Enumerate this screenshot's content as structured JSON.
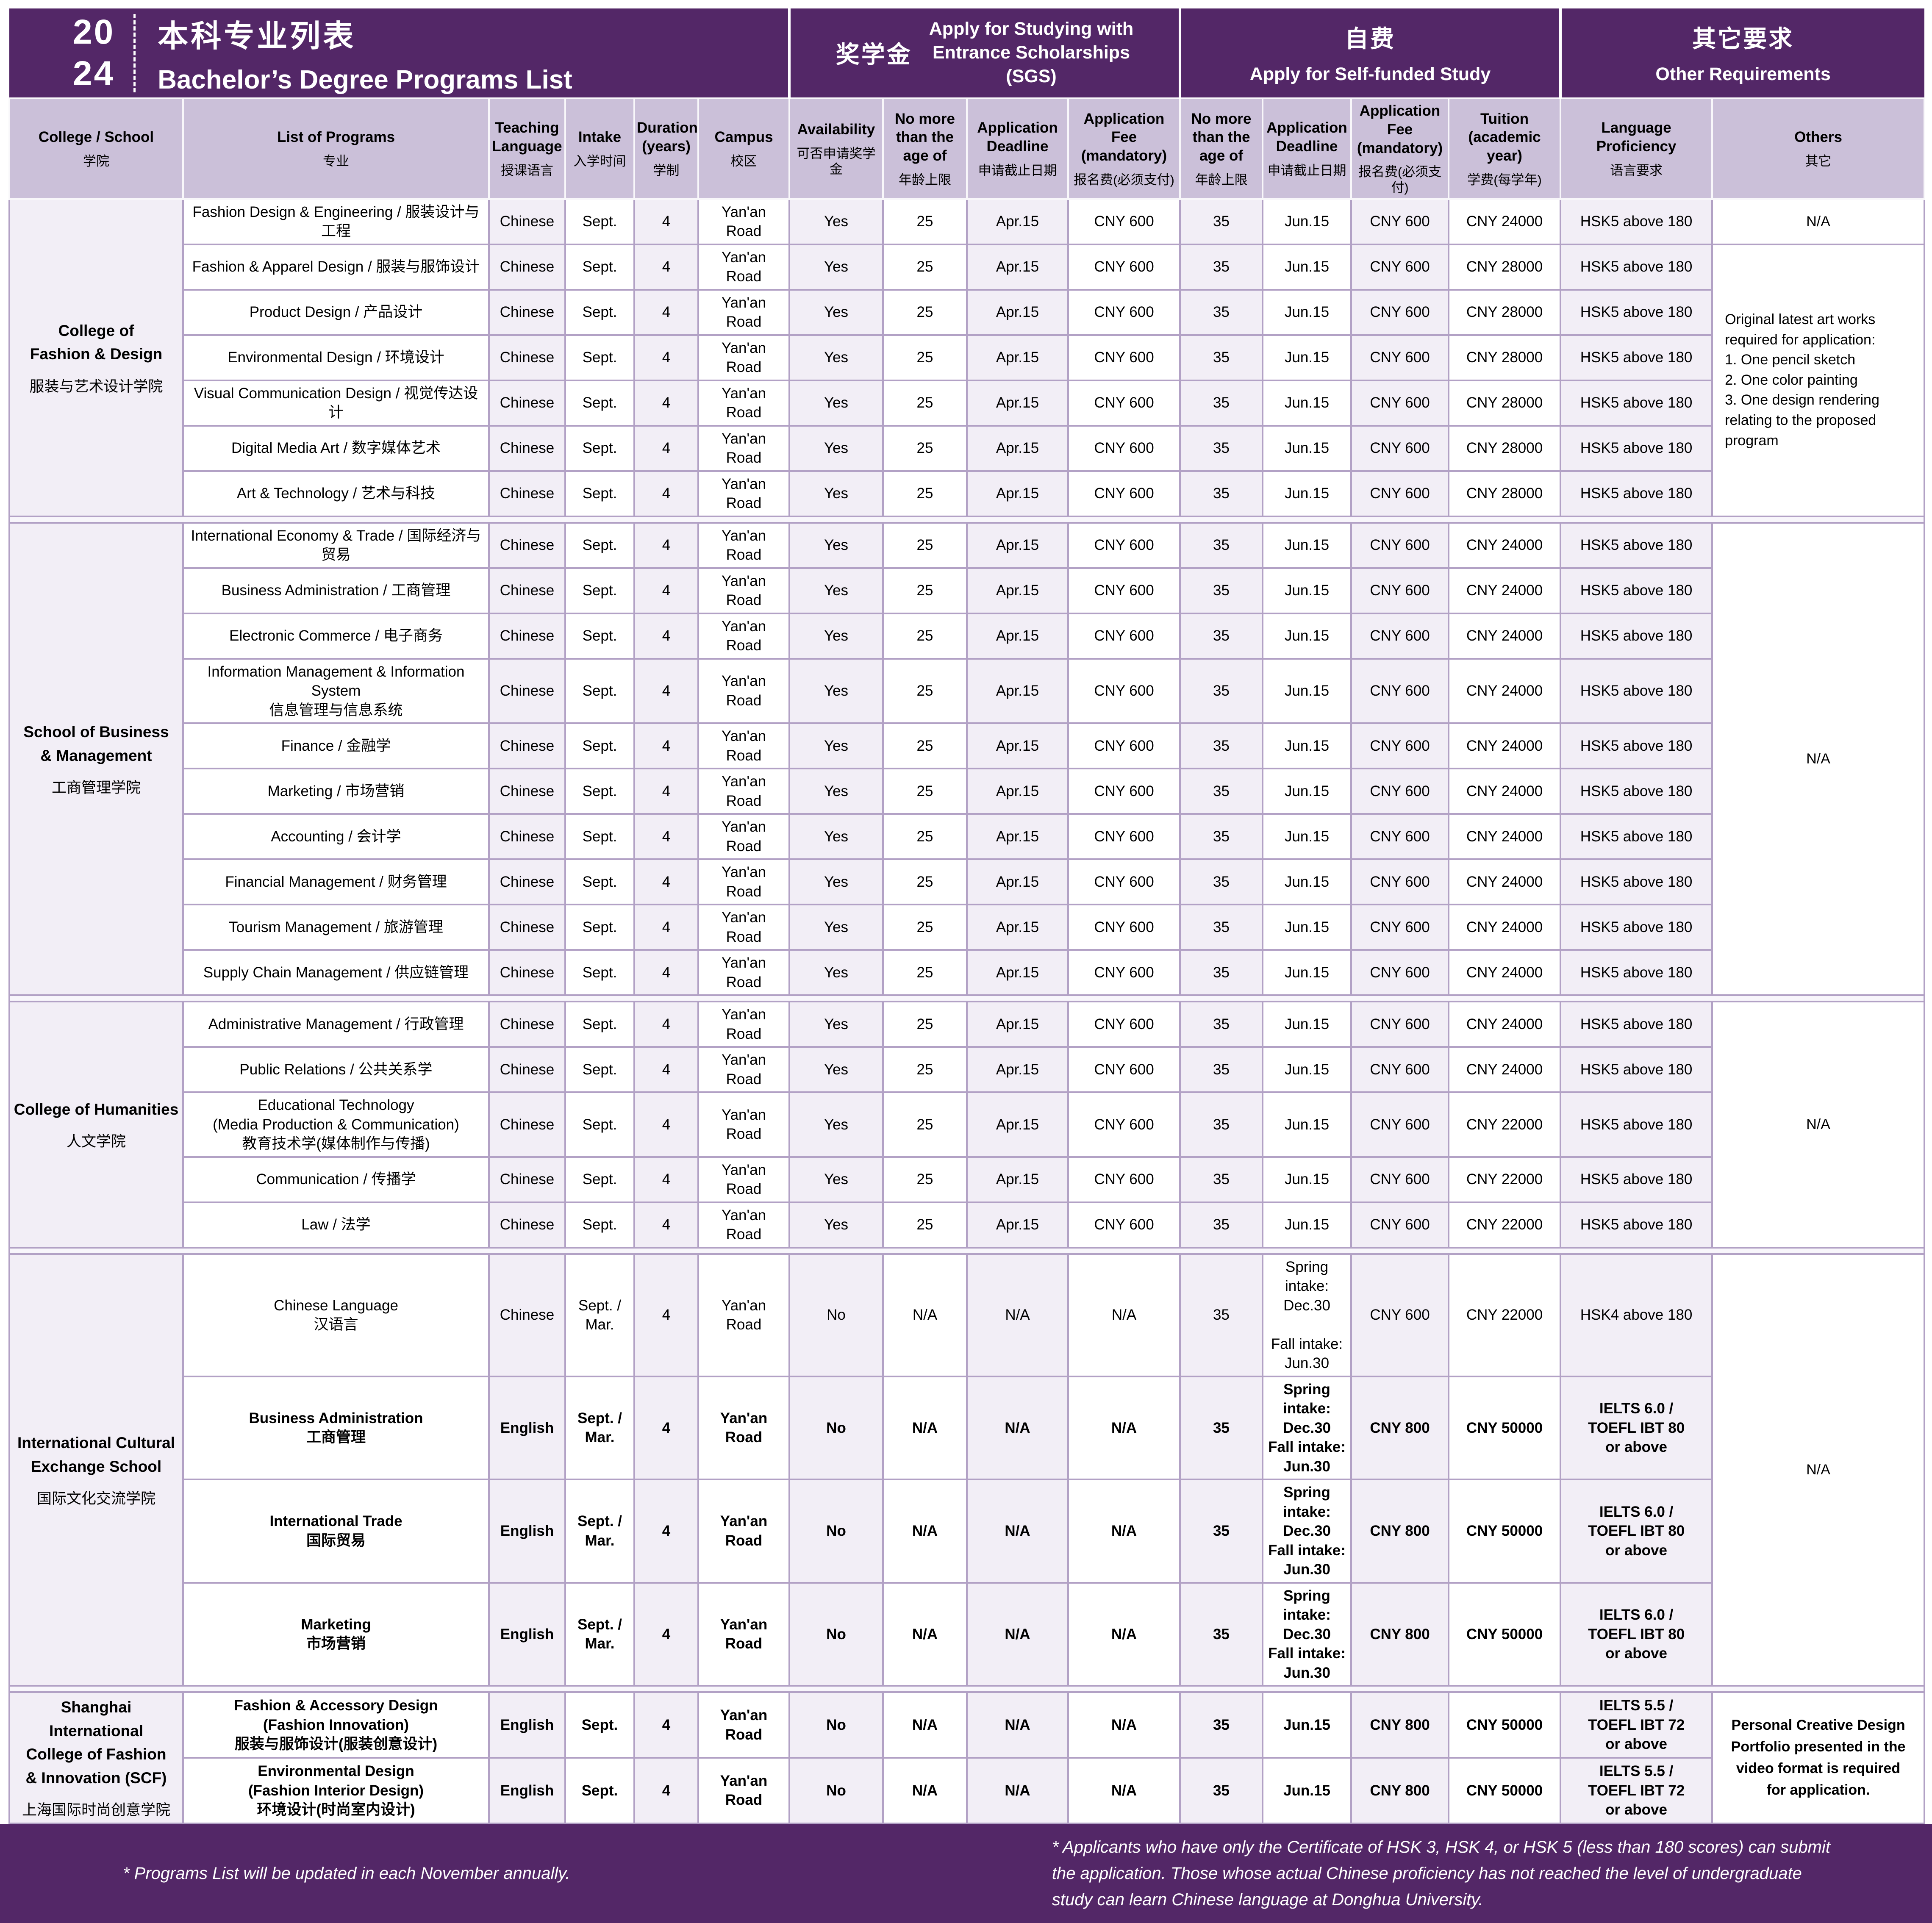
{
  "header": {
    "year_top": "20",
    "year_bottom": "24",
    "title_zh": "本科专业列表",
    "title_en": "Bachelor’s Degree Programs List",
    "groups": {
      "sgs": {
        "zh": "奖学金",
        "en": "Apply for Studying with\nEntrance Scholarships\n(SGS)"
      },
      "self": {
        "zh": "自费",
        "en": "Apply for Self-funded Study"
      },
      "other": {
        "zh": "其它要求",
        "en": "Other Requirements"
      }
    }
  },
  "columns": [
    {
      "en": "College / School",
      "zh": "学院"
    },
    {
      "en": "List of Programs",
      "zh": "专业"
    },
    {
      "en": "Teaching Language",
      "zh": "授课语言"
    },
    {
      "en": "Intake",
      "zh": "入学时间"
    },
    {
      "en": "Duration (years)",
      "zh": "学制"
    },
    {
      "en": "Campus",
      "zh": "校区"
    },
    {
      "en": "Availability",
      "zh": "可否申请奖学金"
    },
    {
      "en": "No more than the age of",
      "zh": "年龄上限"
    },
    {
      "en": "Application Deadline",
      "zh": "申请截止日期"
    },
    {
      "en": "Application Fee (mandatory)",
      "zh": "报名费(必须支付)"
    },
    {
      "en": "No more than the age of",
      "zh": "年龄上限"
    },
    {
      "en": "Application Deadline",
      "zh": "申请截止日期"
    },
    {
      "en": "Application Fee (mandatory)",
      "zh": "报名费(必须支付)"
    },
    {
      "en": "Tuition (academic year)",
      "zh": "学费(每学年)"
    },
    {
      "en": "Language Proficiency",
      "zh": "语言要求"
    },
    {
      "en": "Others",
      "zh": "其它"
    }
  ],
  "colleges": [
    {
      "name_en": "College of\nFashion & Design",
      "name_zh": "服装与艺术设计学院",
      "others": [
        {
          "text": "N/A",
          "rows": 1,
          "align": "center"
        },
        {
          "text": "Original latest art works required for application:\n1. One pencil sketch\n2. One color painting\n3. One design rendering relating to the proposed program",
          "rows": 6,
          "align": "left"
        }
      ],
      "rows": [
        {
          "program": "Fashion Design & Engineering / 服装设计与工程",
          "teaching": "Chinese",
          "intake": "Sept.",
          "duration": "4",
          "campus": "Yan'an Road",
          "availability": "Yes",
          "sgs_age": "25",
          "sgs_deadline": "Apr.15",
          "sgs_fee": "CNY 600",
          "self_age": "35",
          "self_deadline": "Jun.15",
          "self_fee": "CNY 600",
          "tuition": "CNY 24000",
          "language": "HSK5 above 180"
        },
        {
          "program": "Fashion & Apparel Design / 服装与服饰设计",
          "teaching": "Chinese",
          "intake": "Sept.",
          "duration": "4",
          "campus": "Yan'an Road",
          "availability": "Yes",
          "sgs_age": "25",
          "sgs_deadline": "Apr.15",
          "sgs_fee": "CNY 600",
          "self_age": "35",
          "self_deadline": "Jun.15",
          "self_fee": "CNY 600",
          "tuition": "CNY 28000",
          "language": "HSK5 above 180"
        },
        {
          "program": "Product Design / 产品设计",
          "teaching": "Chinese",
          "intake": "Sept.",
          "duration": "4",
          "campus": "Yan'an Road",
          "availability": "Yes",
          "sgs_age": "25",
          "sgs_deadline": "Apr.15",
          "sgs_fee": "CNY 600",
          "self_age": "35",
          "self_deadline": "Jun.15",
          "self_fee": "CNY 600",
          "tuition": "CNY 28000",
          "language": "HSK5 above 180"
        },
        {
          "program": "Environmental Design / 环境设计",
          "teaching": "Chinese",
          "intake": "Sept.",
          "duration": "4",
          "campus": "Yan'an Road",
          "availability": "Yes",
          "sgs_age": "25",
          "sgs_deadline": "Apr.15",
          "sgs_fee": "CNY 600",
          "self_age": "35",
          "self_deadline": "Jun.15",
          "self_fee": "CNY 600",
          "tuition": "CNY 28000",
          "language": "HSK5 above 180"
        },
        {
          "program": "Visual Communication Design / 视觉传达设计",
          "teaching": "Chinese",
          "intake": "Sept.",
          "duration": "4",
          "campus": "Yan'an Road",
          "availability": "Yes",
          "sgs_age": "25",
          "sgs_deadline": "Apr.15",
          "sgs_fee": "CNY 600",
          "self_age": "35",
          "self_deadline": "Jun.15",
          "self_fee": "CNY 600",
          "tuition": "CNY 28000",
          "language": "HSK5 above 180"
        },
        {
          "program": "Digital Media Art / 数字媒体艺术",
          "teaching": "Chinese",
          "intake": "Sept.",
          "duration": "4",
          "campus": "Yan'an Road",
          "availability": "Yes",
          "sgs_age": "25",
          "sgs_deadline": "Apr.15",
          "sgs_fee": "CNY 600",
          "self_age": "35",
          "self_deadline": "Jun.15",
          "self_fee": "CNY 600",
          "tuition": "CNY 28000",
          "language": "HSK5 above 180"
        },
        {
          "program": "Art & Technology / 艺术与科技",
          "teaching": "Chinese",
          "intake": "Sept.",
          "duration": "4",
          "campus": "Yan'an Road",
          "availability": "Yes",
          "sgs_age": "25",
          "sgs_deadline": "Apr.15",
          "sgs_fee": "CNY 600",
          "self_age": "35",
          "self_deadline": "Jun.15",
          "self_fee": "CNY 600",
          "tuition": "CNY 28000",
          "language": "HSK5 above 180"
        }
      ]
    },
    {
      "name_en": "School of Business\n& Management",
      "name_zh": "工商管理学院",
      "others": [
        {
          "text": "N/A",
          "rows": 10,
          "align": "center"
        }
      ],
      "rows": [
        {
          "program": "International Economy & Trade / 国际经济与贸易",
          "teaching": "Chinese",
          "intake": "Sept.",
          "duration": "4",
          "campus": "Yan'an Road",
          "availability": "Yes",
          "sgs_age": "25",
          "sgs_deadline": "Apr.15",
          "sgs_fee": "CNY 600",
          "self_age": "35",
          "self_deadline": "Jun.15",
          "self_fee": "CNY 600",
          "tuition": "CNY 24000",
          "language": "HSK5 above 180"
        },
        {
          "program": "Business Administration / 工商管理",
          "teaching": "Chinese",
          "intake": "Sept.",
          "duration": "4",
          "campus": "Yan'an Road",
          "availability": "Yes",
          "sgs_age": "25",
          "sgs_deadline": "Apr.15",
          "sgs_fee": "CNY 600",
          "self_age": "35",
          "self_deadline": "Jun.15",
          "self_fee": "CNY 600",
          "tuition": "CNY 24000",
          "language": "HSK5 above 180"
        },
        {
          "program": "Electronic Commerce / 电子商务",
          "teaching": "Chinese",
          "intake": "Sept.",
          "duration": "4",
          "campus": "Yan'an Road",
          "availability": "Yes",
          "sgs_age": "25",
          "sgs_deadline": "Apr.15",
          "sgs_fee": "CNY 600",
          "self_age": "35",
          "self_deadline": "Jun.15",
          "self_fee": "CNY 600",
          "tuition": "CNY 24000",
          "language": "HSK5 above 180"
        },
        {
          "program": "Information Management & Information System\n信息管理与信息系统",
          "teaching": "Chinese",
          "intake": "Sept.",
          "duration": "4",
          "campus": "Yan'an Road",
          "availability": "Yes",
          "sgs_age": "25",
          "sgs_deadline": "Apr.15",
          "sgs_fee": "CNY 600",
          "self_age": "35",
          "self_deadline": "Jun.15",
          "self_fee": "CNY 600",
          "tuition": "CNY 24000",
          "language": "HSK5 above 180"
        },
        {
          "program": "Finance / 金融学",
          "teaching": "Chinese",
          "intake": "Sept.",
          "duration": "4",
          "campus": "Yan'an Road",
          "availability": "Yes",
          "sgs_age": "25",
          "sgs_deadline": "Apr.15",
          "sgs_fee": "CNY 600",
          "self_age": "35",
          "self_deadline": "Jun.15",
          "self_fee": "CNY 600",
          "tuition": "CNY 24000",
          "language": "HSK5 above 180"
        },
        {
          "program": "Marketing / 市场营销",
          "teaching": "Chinese",
          "intake": "Sept.",
          "duration": "4",
          "campus": "Yan'an Road",
          "availability": "Yes",
          "sgs_age": "25",
          "sgs_deadline": "Apr.15",
          "sgs_fee": "CNY 600",
          "self_age": "35",
          "self_deadline": "Jun.15",
          "self_fee": "CNY 600",
          "tuition": "CNY 24000",
          "language": "HSK5 above 180"
        },
        {
          "program": "Accounting / 会计学",
          "teaching": "Chinese",
          "intake": "Sept.",
          "duration": "4",
          "campus": "Yan'an Road",
          "availability": "Yes",
          "sgs_age": "25",
          "sgs_deadline": "Apr.15",
          "sgs_fee": "CNY 600",
          "self_age": "35",
          "self_deadline": "Jun.15",
          "self_fee": "CNY 600",
          "tuition": "CNY 24000",
          "language": "HSK5 above 180"
        },
        {
          "program": "Financial Management / 财务管理",
          "teaching": "Chinese",
          "intake": "Sept.",
          "duration": "4",
          "campus": "Yan'an Road",
          "availability": "Yes",
          "sgs_age": "25",
          "sgs_deadline": "Apr.15",
          "sgs_fee": "CNY 600",
          "self_age": "35",
          "self_deadline": "Jun.15",
          "self_fee": "CNY 600",
          "tuition": "CNY 24000",
          "language": "HSK5 above 180"
        },
        {
          "program": "Tourism Management / 旅游管理",
          "teaching": "Chinese",
          "intake": "Sept.",
          "duration": "4",
          "campus": "Yan'an Road",
          "availability": "Yes",
          "sgs_age": "25",
          "sgs_deadline": "Apr.15",
          "sgs_fee": "CNY 600",
          "self_age": "35",
          "self_deadline": "Jun.15",
          "self_fee": "CNY 600",
          "tuition": "CNY 24000",
          "language": "HSK5 above 180"
        },
        {
          "program": "Supply Chain Management / 供应链管理",
          "teaching": "Chinese",
          "intake": "Sept.",
          "duration": "4",
          "campus": "Yan'an Road",
          "availability": "Yes",
          "sgs_age": "25",
          "sgs_deadline": "Apr.15",
          "sgs_fee": "CNY 600",
          "self_age": "35",
          "self_deadline": "Jun.15",
          "self_fee": "CNY 600",
          "tuition": "CNY 24000",
          "language": "HSK5 above 180"
        }
      ]
    },
    {
      "name_en": "College of Humanities",
      "name_zh": "人文学院",
      "others": [
        {
          "text": "N/A",
          "rows": 5,
          "align": "center"
        }
      ],
      "rows": [
        {
          "program": "Administrative Management / 行政管理",
          "teaching": "Chinese",
          "intake": "Sept.",
          "duration": "4",
          "campus": "Yan'an Road",
          "availability": "Yes",
          "sgs_age": "25",
          "sgs_deadline": "Apr.15",
          "sgs_fee": "CNY 600",
          "self_age": "35",
          "self_deadline": "Jun.15",
          "self_fee": "CNY 600",
          "tuition": "CNY 24000",
          "language": "HSK5 above 180"
        },
        {
          "program": "Public Relations / 公共关系学",
          "teaching": "Chinese",
          "intake": "Sept.",
          "duration": "4",
          "campus": "Yan'an Road",
          "availability": "Yes",
          "sgs_age": "25",
          "sgs_deadline": "Apr.15",
          "sgs_fee": "CNY 600",
          "self_age": "35",
          "self_deadline": "Jun.15",
          "self_fee": "CNY 600",
          "tuition": "CNY 24000",
          "language": "HSK5 above 180"
        },
        {
          "program": "Educational Technology\n(Media Production & Communication)\n教育技术学(媒体制作与传播)",
          "teaching": "Chinese",
          "intake": "Sept.",
          "duration": "4",
          "campus": "Yan'an Road",
          "availability": "Yes",
          "sgs_age": "25",
          "sgs_deadline": "Apr.15",
          "sgs_fee": "CNY 600",
          "self_age": "35",
          "self_deadline": "Jun.15",
          "self_fee": "CNY 600",
          "tuition": "CNY 22000",
          "language": "HSK5 above 180"
        },
        {
          "program": "Communication / 传播学",
          "teaching": "Chinese",
          "intake": "Sept.",
          "duration": "4",
          "campus": "Yan'an Road",
          "availability": "Yes",
          "sgs_age": "25",
          "sgs_deadline": "Apr.15",
          "sgs_fee": "CNY 600",
          "self_age": "35",
          "self_deadline": "Jun.15",
          "self_fee": "CNY 600",
          "tuition": "CNY 22000",
          "language": "HSK5 above 180"
        },
        {
          "program": "Law / 法学",
          "teaching": "Chinese",
          "intake": "Sept.",
          "duration": "4",
          "campus": "Yan'an Road",
          "availability": "Yes",
          "sgs_age": "25",
          "sgs_deadline": "Apr.15",
          "sgs_fee": "CNY 600",
          "self_age": "35",
          "self_deadline": "Jun.15",
          "self_fee": "CNY 600",
          "tuition": "CNY 22000",
          "language": "HSK5 above 180"
        }
      ]
    },
    {
      "name_en": "International Cultural\nExchange School",
      "name_zh": "国际文化交流学院",
      "others": [
        {
          "text": "N/A",
          "rows": 4,
          "align": "center"
        }
      ],
      "rows": [
        {
          "program": "Chinese Language\n汉语言",
          "teaching": "Chinese",
          "intake": "Sept. /\nMar.",
          "duration": "4",
          "campus": "Yan'an Road",
          "availability": "No",
          "sgs_age": "N/A",
          "sgs_deadline": "N/A",
          "sgs_fee": "N/A",
          "self_age": "35",
          "self_deadline": "Spring intake:\nDec.30\n\nFall intake:\nJun.30",
          "self_fee": "CNY 600",
          "tuition": "CNY 22000",
          "language": "HSK4 above 180"
        },
        {
          "program": "Business Administration\n工商管理",
          "bold": true,
          "teaching": "English",
          "intake": "Sept. /\nMar.",
          "duration": "4",
          "campus": "Yan'an Road",
          "availability": "No",
          "sgs_age": "N/A",
          "sgs_deadline": "N/A",
          "sgs_fee": "N/A",
          "self_age": "35",
          "self_deadline": "Spring intake:\nDec.30\nFall intake:\nJun.30",
          "self_fee": "CNY 800",
          "tuition": "CNY 50000",
          "language": "IELTS 6.0 /\nTOEFL IBT 80\nor above"
        },
        {
          "program": "International Trade\n国际贸易",
          "bold": true,
          "teaching": "English",
          "intake": "Sept. /\nMar.",
          "duration": "4",
          "campus": "Yan'an Road",
          "availability": "No",
          "sgs_age": "N/A",
          "sgs_deadline": "N/A",
          "sgs_fee": "N/A",
          "self_age": "35",
          "self_deadline": "Spring intake:\nDec.30\nFall intake:\nJun.30",
          "self_fee": "CNY 800",
          "tuition": "CNY 50000",
          "language": "IELTS 6.0 /\nTOEFL IBT 80\nor above"
        },
        {
          "program": "Marketing\n市场营销",
          "bold": true,
          "teaching": "English",
          "intake": "Sept. /\nMar.",
          "duration": "4",
          "campus": "Yan'an Road",
          "availability": "No",
          "sgs_age": "N/A",
          "sgs_deadline": "N/A",
          "sgs_fee": "N/A",
          "self_age": "35",
          "self_deadline": "Spring intake:\nDec.30\nFall intake:\nJun.30",
          "self_fee": "CNY 800",
          "tuition": "CNY 50000",
          "language": "IELTS 6.0 /\nTOEFL IBT 80\nor above"
        }
      ]
    },
    {
      "name_en": "Shanghai International\nCollege of Fashion\n& Innovation (SCF)",
      "name_zh": "上海国际时尚创意学院",
      "others": [
        {
          "text": "Personal Creative Design\nPortfolio presented in the\nvideo format is required\nfor application.",
          "rows": 2,
          "align": "center"
        }
      ],
      "rows": [
        {
          "program": "Fashion & Accessory Design\n(Fashion Innovation)\n服装与服饰设计(服装创意设计)",
          "bold": true,
          "teaching": "English",
          "intake": "Sept.",
          "duration": "4",
          "campus": "Yan'an Road",
          "availability": "No",
          "sgs_age": "N/A",
          "sgs_deadline": "N/A",
          "sgs_fee": "N/A",
          "self_age": "35",
          "self_deadline": "Jun.15",
          "self_fee": "CNY 800",
          "tuition": "CNY 50000",
          "language": "IELTS 5.5 /\nTOEFL IBT 72\nor above"
        },
        {
          "program": "Environmental Design\n(Fashion Interior Design)\n环境设计(时尚室内设计)",
          "bold": true,
          "teaching": "English",
          "intake": "Sept.",
          "duration": "4",
          "campus": "Yan'an Road",
          "availability": "No",
          "sgs_age": "N/A",
          "sgs_deadline": "N/A",
          "sgs_fee": "N/A",
          "self_age": "35",
          "self_deadline": "Jun.15",
          "self_fee": "CNY 800",
          "tuition": "CNY 50000",
          "language": "IELTS 5.5 /\nTOEFL IBT 72\nor above"
        }
      ]
    }
  ],
  "footer": {
    "note_left": "* Programs List will be updated in each November annually.",
    "note_right": "* Applicants who have only the Certificate of HSK 3, HSK 4, or HSK 5 (less than 180 scores) can submit\nthe application. Those whose actual Chinese proficiency has not reached the level of undergraduate\nstudy can learn Chinese language at Donghua University.",
    "accent_color": "#532767"
  }
}
